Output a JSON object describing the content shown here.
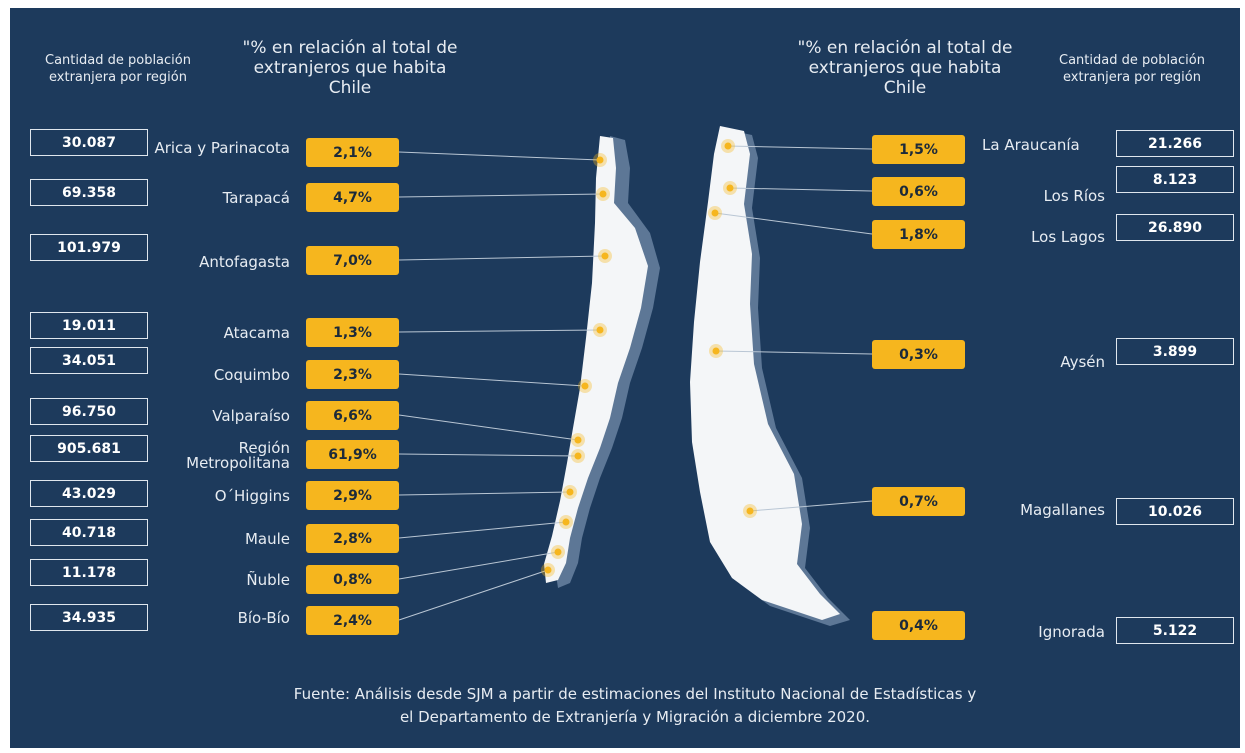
{
  "headers": {
    "count_left": "Cantidad de población extranjera por región",
    "pct_left": "\"% en relación al total de extranjeros que habita Chile",
    "pct_right": "\"% en relación al total de extranjeros que habita Chile",
    "count_right": "Cantidad de población extranjera por región"
  },
  "chart_data": {
    "type": "table",
    "columns": [
      "Región",
      "%",
      "Cantidad"
    ],
    "north_and_central": [
      {
        "region": "Arica y Parinacota",
        "percent": "2,1%",
        "count": "30.087"
      },
      {
        "region": "Tarapacá",
        "percent": "4,7%",
        "count": "69.358"
      },
      {
        "region": "Antofagasta",
        "percent": "7,0%",
        "count": "101.979"
      },
      {
        "region": "Atacama",
        "percent": "1,3%",
        "count": "19.011"
      },
      {
        "region": "Coquimbo",
        "percent": "2,3%",
        "count": "34.051"
      },
      {
        "region": "Valparaíso",
        "percent": "6,6%",
        "count": "96.750"
      },
      {
        "region": "Región Metropolitana",
        "percent": "61,9%",
        "count": "905.681"
      },
      {
        "region": "O´Higgins",
        "percent": "2,9%",
        "count": "43.029"
      },
      {
        "region": "Maule",
        "percent": "2,8%",
        "count": "40.718"
      },
      {
        "region": "Ñuble",
        "percent": "0,8%",
        "count": "11.178"
      },
      {
        "region": "Bío-Bío",
        "percent": "2,4%",
        "count": "34.935"
      }
    ],
    "south": [
      {
        "region": "La Araucanía",
        "percent": "1,5%",
        "count": "21.266"
      },
      {
        "region": "Los Ríos",
        "percent": "0,6%",
        "count": "8.123"
      },
      {
        "region": "Los Lagos",
        "percent": "1,8%",
        "count": "26.890"
      },
      {
        "region": "Aysén",
        "percent": "0,3%",
        "count": "3.899"
      },
      {
        "region": "Magallanes",
        "percent": "0,7%",
        "count": "10.026"
      },
      {
        "region": "Ignorada",
        "percent": "0,4%",
        "count": "5.122"
      }
    ]
  },
  "source": {
    "line1": "Fuente: Análisis desde SJM a partir de estimaciones del Instituto Nacional de Estadísticas y",
    "line2": "el Departamento de Extranjería y Migración a diciembre 2020."
  },
  "colors": {
    "background": "#1d3a5c",
    "badge": "#f6b61e",
    "map": "#f4f6f8",
    "map_shadow": "#5d7796",
    "marker": "#f6b61e"
  }
}
